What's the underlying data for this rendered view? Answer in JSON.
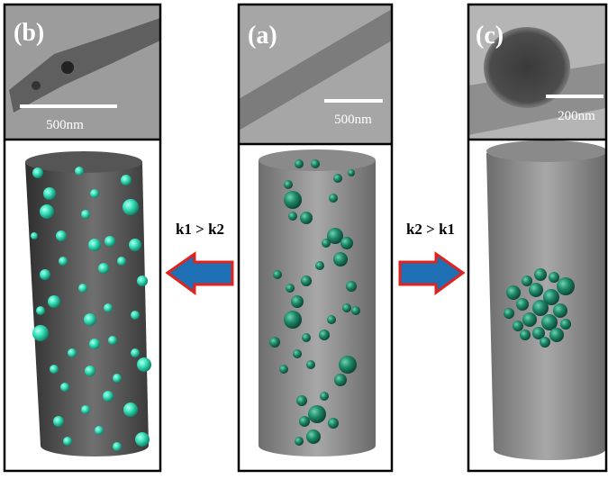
{
  "panels": [
    {
      "label": "(b)",
      "scale_bar": "500nm"
    },
    {
      "label": "(a)",
      "scale_bar": "500nm"
    },
    {
      "label": "(c)",
      "scale_bar": "200nm"
    }
  ],
  "arrows": [
    {
      "label": "k1 > k2"
    },
    {
      "label": "k2 > k1"
    }
  ]
}
